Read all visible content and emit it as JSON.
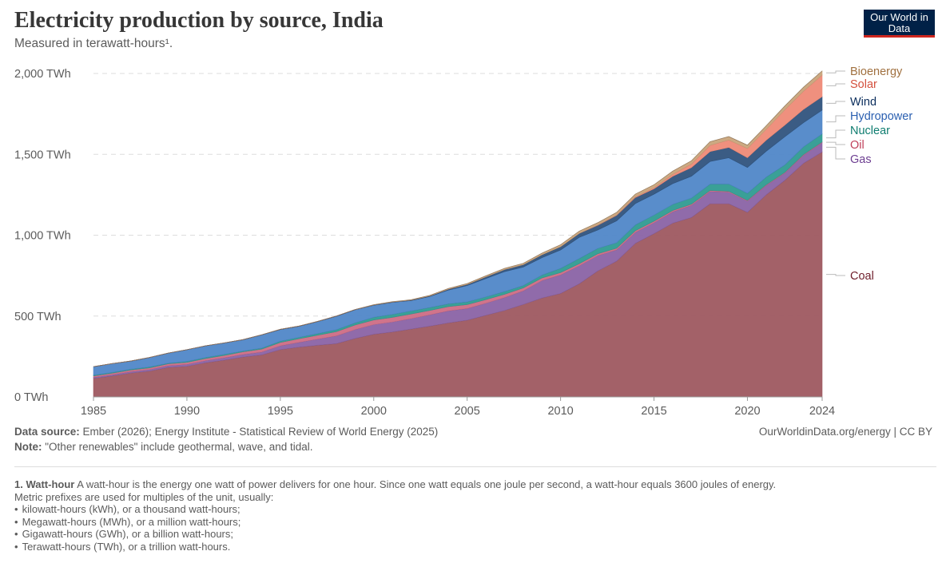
{
  "header": {
    "title": "Electricity production by source, India",
    "subtitle": "Measured in terawatt-hours¹.",
    "logo": "Our World in Data"
  },
  "chart_data": {
    "type": "area",
    "stacked": true,
    "title": "Electricity production by source, India",
    "subtitle": "Measured in terawatt-hours¹.",
    "x": [
      1985,
      1986,
      1987,
      1988,
      1989,
      1990,
      1991,
      1992,
      1993,
      1994,
      1995,
      1996,
      1997,
      1998,
      1999,
      2000,
      2001,
      2002,
      2003,
      2004,
      2005,
      2006,
      2007,
      2008,
      2009,
      2010,
      2011,
      2012,
      2013,
      2014,
      2015,
      2016,
      2017,
      2018,
      2019,
      2020,
      2021,
      2022,
      2023,
      2024
    ],
    "xticks": [
      "1985",
      "1990",
      "1995",
      "2000",
      "2005",
      "2010",
      "2015",
      "2020",
      "2024"
    ],
    "yticks": [
      "0 TWh",
      "500 TWh",
      "1,000 TWh",
      "1,500 TWh",
      "2,000 TWh"
    ],
    "ylim": [
      0,
      2000
    ],
    "grid": "horizontal dashed",
    "legend": "right, inline labels",
    "series": [
      {
        "name": "Coal",
        "color": "#9e5860",
        "label_color": "#6e1e2b",
        "values": [
          115,
          130,
          148,
          160,
          183,
          190,
          212,
          228,
          247,
          260,
          293,
          308,
          320,
          330,
          362,
          388,
          402,
          420,
          438,
          458,
          475,
          505,
          535,
          572,
          612,
          640,
          700,
          780,
          840,
          950,
          1010,
          1075,
          1110,
          1195,
          1195,
          1142,
          1250,
          1340,
          1445,
          1515
        ]
      },
      {
        "name": "Gas",
        "color": "#8a63a5",
        "label_color": "#6d3e91",
        "values": [
          7,
          8,
          9,
          10,
          11,
          12,
          13,
          15,
          16,
          18,
          24,
          30,
          38,
          48,
          55,
          60,
          62,
          65,
          70,
          75,
          72,
          75,
          80,
          84,
          108,
          115,
          112,
          95,
          70,
          68,
          68,
          70,
          75,
          76,
          72,
          70,
          58,
          45,
          50,
          58
        ]
      },
      {
        "name": "Oil",
        "color": "#cd6d85",
        "label_color": "#c0405a",
        "values": [
          8,
          9,
          10,
          10,
          11,
          12,
          13,
          14,
          16,
          18,
          20,
          22,
          24,
          26,
          28,
          28,
          28,
          28,
          27,
          26,
          24,
          22,
          20,
          18,
          16,
          14,
          12,
          11,
          10,
          10,
          9,
          8,
          7,
          6,
          5,
          4,
          4,
          4,
          4,
          4
        ]
      },
      {
        "name": "Nuclear",
        "color": "#2f9b91",
        "label_color": "#0f7d70",
        "values": [
          5,
          5,
          5,
          6,
          4,
          6,
          6,
          7,
          5,
          6,
          8,
          9,
          10,
          12,
          13,
          17,
          19,
          19,
          18,
          17,
          17,
          17,
          17,
          15,
          18,
          26,
          32,
          33,
          34,
          36,
          38,
          38,
          38,
          39,
          45,
          43,
          47,
          46,
          48,
          50
        ]
      },
      {
        "name": "Hydropower",
        "color": "#5087c8",
        "label_color": "#2a5fb0",
        "values": [
          52,
          54,
          50,
          58,
          62,
          72,
          72,
          70,
          70,
          82,
          72,
          68,
          74,
          83,
          81,
          74,
          74,
          64,
          68,
          85,
          101,
          113,
          123,
          114,
          107,
          114,
          131,
          114,
          135,
          132,
          129,
          128,
          135,
          140,
          162,
          160,
          160,
          174,
          149,
          147
        ]
      },
      {
        "name": "Wind",
        "color": "#30537d",
        "label_color": "#0a2d5c",
        "values": [
          0,
          0,
          0,
          0,
          0,
          0,
          0,
          0,
          0,
          0,
          1,
          1,
          1,
          1,
          1,
          2,
          2,
          3,
          4,
          6,
          7,
          11,
          13,
          15,
          18,
          20,
          24,
          29,
          34,
          37,
          33,
          45,
          53,
          61,
          64,
          60,
          68,
          72,
          82,
          83
        ]
      },
      {
        "name": "Solar",
        "color": "#ee8a77",
        "label_color": "#d4503d",
        "values": [
          0,
          0,
          0,
          0,
          0,
          0,
          0,
          0,
          0,
          0,
          0,
          0,
          0,
          0,
          0,
          0,
          0,
          0,
          0,
          0,
          0,
          0,
          0,
          0,
          0,
          0,
          1,
          2,
          3,
          5,
          7,
          13,
          22,
          39,
          46,
          58,
          68,
          95,
          113,
          134
        ]
      },
      {
        "name": "Bioenergy",
        "color": "#c9a47b",
        "label_color": "#a0703f",
        "values": [
          0,
          0,
          0,
          0,
          0,
          0,
          0,
          0,
          0,
          0,
          0,
          0,
          0,
          0,
          0,
          1,
          2,
          2,
          3,
          4,
          5,
          6,
          7,
          8,
          10,
          12,
          13,
          14,
          15,
          16,
          18,
          19,
          20,
          22,
          21,
          20,
          21,
          23,
          24,
          25
        ]
      }
    ]
  },
  "footer": {
    "source_label": "Data source:",
    "source": "Ember (2026); Energy Institute - Statistical Review of World Energy (2025)",
    "credit": "OurWorldinData.org/energy | CC BY",
    "note_label": "Note:",
    "note": "\"Other renewables\" include geothermal, wave, and tidal."
  },
  "footnote": {
    "label": "1. Watt-hour",
    "text": "A watt-hour is the energy one watt of power delivers for one hour. Since one watt equals one joule per second, a watt-hour equals 3600 joules of energy.",
    "intro": "Metric prefixes are used for multiples of the unit, usually:",
    "items": [
      "kilowatt-hours (kWh), or a thousand watt-hours;",
      "Megawatt-hours (MWh), or a million watt-hours;",
      "Gigawatt-hours (GWh), or a billion watt-hours;",
      "Terawatt-hours (TWh), or a trillion watt-hours."
    ]
  }
}
